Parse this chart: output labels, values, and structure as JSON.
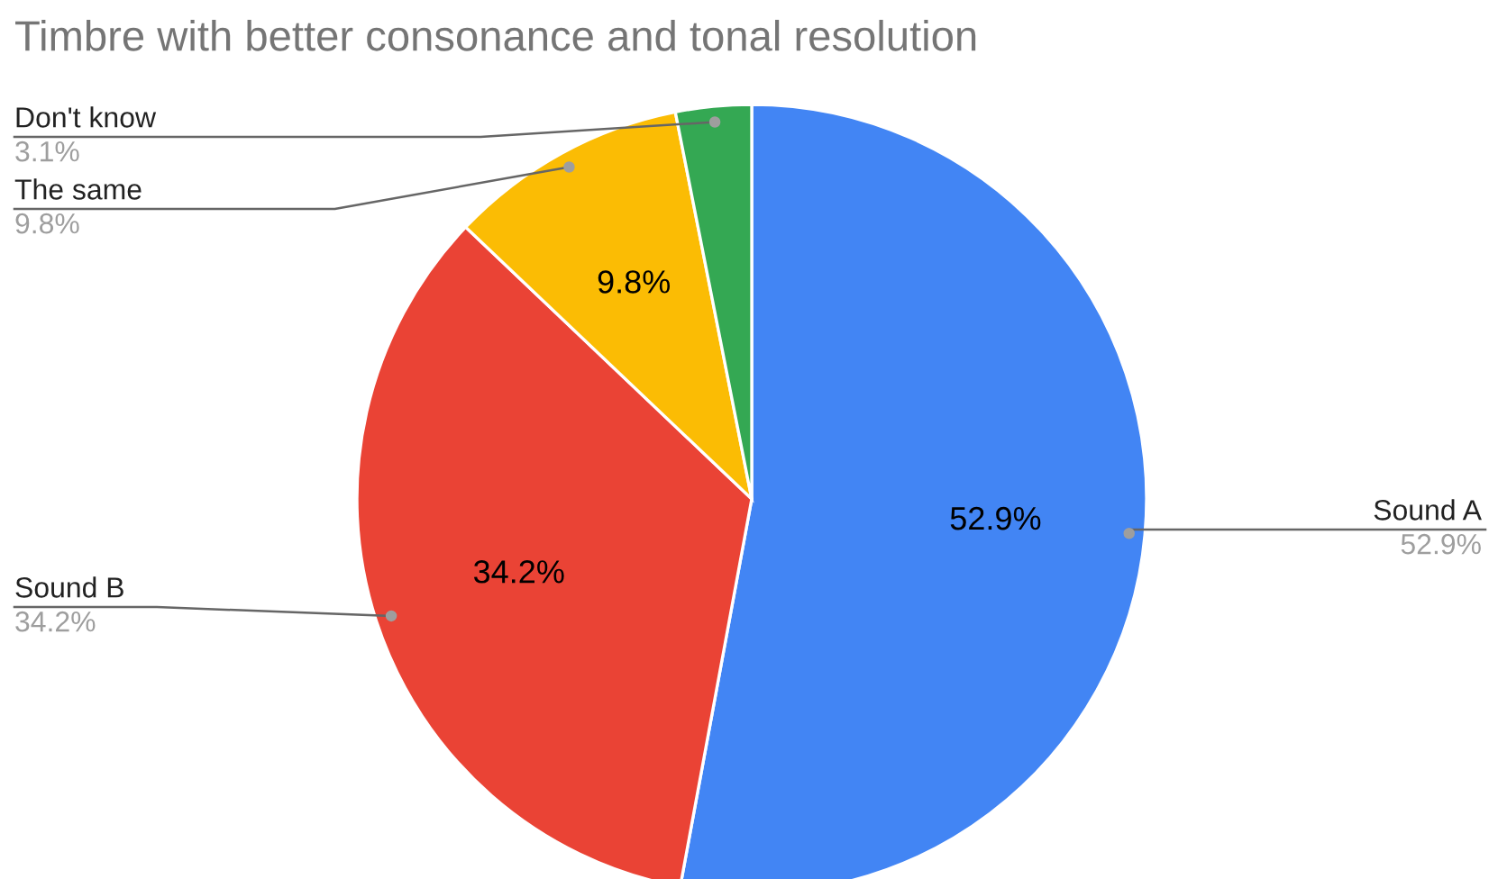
{
  "chart_data": {
    "type": "pie",
    "title": "Timbre with better consonance and tonal resolution",
    "categories": [
      "Sound A",
      "Sound B",
      "The same",
      "Don't know"
    ],
    "values": [
      52.9,
      34.2,
      9.8,
      3.1
    ],
    "colors": [
      "#4285f4",
      "#ea4335",
      "#fbbc04",
      "#34a853"
    ],
    "value_labels": [
      "52.9%",
      "34.2%",
      "9.8%",
      null
    ],
    "annotations": [
      "52.9%",
      "34.2%",
      "9.8%",
      "3.1%"
    ]
  }
}
